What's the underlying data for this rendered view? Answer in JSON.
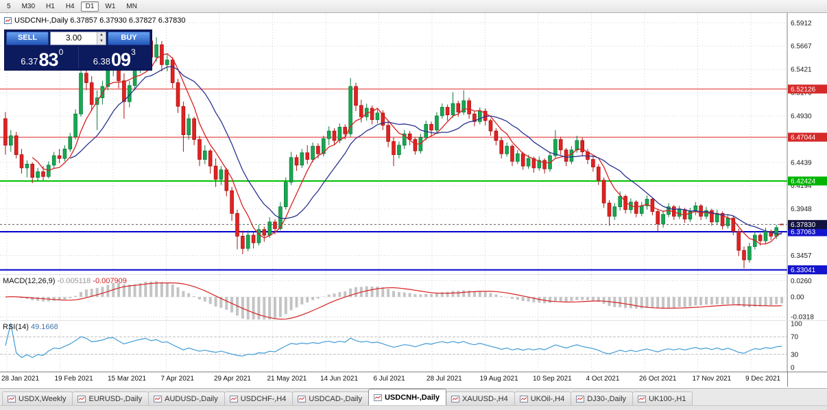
{
  "toolbar": {
    "timeframes": [
      "5",
      "M30",
      "H1",
      "H4",
      "D1",
      "W1",
      "MN"
    ],
    "active": "D1"
  },
  "chart_header": {
    "symbol_line": "USDCNH-,Daily  6.37857 6.37930 6.37827 6.37830"
  },
  "one_click": {
    "sell_label": "SELL",
    "buy_label": "BUY",
    "lot": "3.00",
    "sell_price": {
      "prefix": "6.37",
      "big": "83",
      "sup": "0"
    },
    "buy_price": {
      "prefix": "6.38",
      "big": "09",
      "sup": "3"
    }
  },
  "axis": {
    "price_labels": [
      6.5912,
      6.5667,
      6.5421,
      6.5176,
      6.493,
      6.4685,
      6.4439,
      6.4194,
      6.3948,
      6.3703,
      6.3457
    ],
    "badges": [
      {
        "label": "6.52126",
        "price": 6.52126,
        "bg": "#d42a2a"
      },
      {
        "label": "6.47044",
        "price": 6.47044,
        "bg": "#d42a2a"
      },
      {
        "label": "6.42424",
        "price": 6.42424,
        "bg": "#00b400"
      },
      {
        "label": "6.37063",
        "price": 6.37063,
        "bg": "#1414cc"
      },
      {
        "label": "6.33041",
        "price": 6.33041,
        "bg": "#1414cc"
      },
      {
        "label": "6.37830",
        "price": 6.3783,
        "bg": "#13133f"
      }
    ]
  },
  "indicators": {
    "macd": {
      "name": "MACD(12,26,9)",
      "value_main": "-0.005118",
      "value_signal": "-0.007909",
      "axis_labels": [
        {
          "text": "0.0260",
          "value": 0.026
        },
        {
          "text": "0.00",
          "value": 0
        },
        {
          "text": "-0.0318",
          "value": -0.0318
        }
      ]
    },
    "rsi": {
      "name": "RSI(14)",
      "value": "49.1668",
      "axis_labels": [
        {
          "text": "100",
          "value": 100
        },
        {
          "text": "70",
          "value": 70
        },
        {
          "text": "30",
          "value": 30
        },
        {
          "text": "0",
          "value": 0
        }
      ],
      "levels": [
        70,
        30
      ]
    }
  },
  "tabs": {
    "items": [
      "USDX,Weekly",
      "EURUSD-,Daily",
      "AUDUSD-,Daily",
      "USDCHF-,H4",
      "USDCAD-,Daily",
      "USDCNH-,Daily",
      "XAUUSD-,H4",
      "UKOil-,H4",
      "DJ30-,Daily",
      "UK100-,H1"
    ],
    "active": "USDCNH-,Daily"
  },
  "chart_data": {
    "type": "candlestick",
    "symbol": "USDCNH-",
    "timeframe": "Daily",
    "current_bar": {
      "open": 6.37857,
      "high": 6.3793,
      "low": 6.37827,
      "close": 6.3783
    },
    "price_range": [
      6.3265,
      6.6001
    ],
    "grid": "dotted",
    "date_ticks": [
      "28 Jan 2021",
      "19 Feb 2021",
      "15 Mar 2021",
      "7 Apr 2021",
      "29 Apr 2021",
      "21 May 2021",
      "14 Jun 2021",
      "6 Jul 2021",
      "28 Jul 2021",
      "19 Aug 2021",
      "10 Sep 2021",
      "4 Oct 2021",
      "26 Oct 2021",
      "17 Nov 2021",
      "9 Dec 2021"
    ],
    "hlines": [
      {
        "price": 6.52126,
        "color": "#e02020",
        "width": 1
      },
      {
        "price": 6.47044,
        "color": "#e02020",
        "width": 1
      },
      {
        "price": 6.42424,
        "color": "#00c000",
        "width": 2
      },
      {
        "price": 6.37063,
        "color": "#0000cd",
        "width": 2
      },
      {
        "price": 6.33041,
        "color": "#0000cd",
        "width": 2
      }
    ],
    "bid_line": {
      "price": 6.3783,
      "color": "#5a5a5a"
    },
    "moving_averages": [
      {
        "period": 6,
        "color": "#d62020"
      },
      {
        "period": 13,
        "color": "#28318f"
      }
    ],
    "up_color": "#18a852",
    "down_color": "#e22222",
    "candles": [
      [
        6.49,
        6.497,
        6.452,
        6.462
      ],
      [
        6.462,
        6.478,
        6.455,
        6.472
      ],
      [
        6.472,
        6.476,
        6.448,
        6.452
      ],
      [
        6.452,
        6.458,
        6.432,
        6.438
      ],
      [
        6.438,
        6.446,
        6.428,
        6.442
      ],
      [
        6.442,
        6.444,
        6.422,
        6.428
      ],
      [
        6.428,
        6.438,
        6.424,
        6.434
      ],
      [
        6.434,
        6.44,
        6.425,
        6.429
      ],
      [
        6.429,
        6.445,
        6.427,
        6.441
      ],
      [
        6.441,
        6.455,
        6.438,
        6.451
      ],
      [
        6.451,
        6.458,
        6.443,
        6.448
      ],
      [
        6.448,
        6.462,
        6.445,
        6.458
      ],
      [
        6.458,
        6.475,
        6.455,
        6.471
      ],
      [
        6.471,
        6.5,
        6.468,
        6.495
      ],
      [
        6.495,
        6.548,
        6.492,
        6.538
      ],
      [
        6.538,
        6.575,
        6.52,
        6.528
      ],
      [
        6.528,
        6.535,
        6.498,
        6.505
      ],
      [
        6.505,
        6.52,
        6.478,
        6.512
      ],
      [
        6.512,
        6.53,
        6.505,
        6.524
      ],
      [
        6.524,
        6.572,
        6.52,
        6.548
      ],
      [
        6.548,
        6.562,
        6.535,
        6.552
      ],
      [
        6.552,
        6.556,
        6.522,
        6.53
      ],
      [
        6.53,
        6.538,
        6.49,
        6.508
      ],
      [
        6.508,
        6.53,
        6.502,
        6.525
      ],
      [
        6.525,
        6.548,
        6.52,
        6.542
      ],
      [
        6.542,
        6.565,
        6.538,
        6.558
      ],
      [
        6.558,
        6.583,
        6.552,
        6.572
      ],
      [
        6.572,
        6.578,
        6.548,
        6.555
      ],
      [
        6.555,
        6.576,
        6.55,
        6.568
      ],
      [
        6.568,
        6.572,
        6.54,
        6.547
      ],
      [
        6.547,
        6.558,
        6.54,
        6.552
      ],
      [
        6.552,
        6.555,
        6.522,
        6.528
      ],
      [
        6.528,
        6.532,
        6.496,
        6.503
      ],
      [
        6.503,
        6.508,
        6.455,
        6.473
      ],
      [
        6.473,
        6.495,
        6.468,
        6.49
      ],
      [
        6.49,
        6.492,
        6.462,
        6.468
      ],
      [
        6.468,
        6.472,
        6.44,
        6.447
      ],
      [
        6.447,
        6.462,
        6.442,
        6.456
      ],
      [
        6.456,
        6.458,
        6.432,
        6.44
      ],
      [
        6.44,
        6.448,
        6.418,
        6.426
      ],
      [
        6.426,
        6.44,
        6.42,
        6.436
      ],
      [
        6.436,
        6.438,
        6.408,
        6.414
      ],
      [
        6.414,
        6.418,
        6.382,
        6.39
      ],
      [
        6.39,
        6.394,
        6.352,
        6.366
      ],
      [
        6.366,
        6.372,
        6.347,
        6.353
      ],
      [
        6.353,
        6.372,
        6.35,
        6.367
      ],
      [
        6.367,
        6.37,
        6.353,
        6.359
      ],
      [
        6.359,
        6.378,
        6.356,
        6.373
      ],
      [
        6.373,
        6.376,
        6.36,
        6.367
      ],
      [
        6.367,
        6.386,
        6.364,
        6.381
      ],
      [
        6.381,
        6.384,
        6.368,
        6.374
      ],
      [
        6.374,
        6.402,
        6.372,
        6.397
      ],
      [
        6.397,
        6.428,
        6.394,
        6.423
      ],
      [
        6.423,
        6.455,
        6.42,
        6.449
      ],
      [
        6.449,
        6.452,
        6.435,
        6.441
      ],
      [
        6.441,
        6.458,
        6.438,
        6.454
      ],
      [
        6.454,
        6.462,
        6.442,
        6.447
      ],
      [
        6.447,
        6.465,
        6.444,
        6.461
      ],
      [
        6.461,
        6.464,
        6.448,
        6.453
      ],
      [
        6.453,
        6.472,
        6.45,
        6.469
      ],
      [
        6.469,
        6.482,
        6.462,
        6.477
      ],
      [
        6.477,
        6.48,
        6.462,
        6.467
      ],
      [
        6.467,
        6.485,
        6.464,
        6.481
      ],
      [
        6.481,
        6.484,
        6.468,
        6.474
      ],
      [
        6.474,
        6.533,
        6.471,
        6.524
      ],
      [
        6.524,
        6.528,
        6.498,
        6.504
      ],
      [
        6.504,
        6.51,
        6.486,
        6.492
      ],
      [
        6.492,
        6.506,
        6.488,
        6.501
      ],
      [
        6.501,
        6.504,
        6.484,
        6.489
      ],
      [
        6.489,
        6.5,
        6.485,
        6.496
      ],
      [
        6.496,
        6.499,
        6.478,
        6.483
      ],
      [
        6.483,
        6.486,
        6.46,
        6.466
      ],
      [
        6.466,
        6.47,
        6.44,
        6.452
      ],
      [
        6.452,
        6.466,
        6.448,
        6.462
      ],
      [
        6.462,
        6.478,
        6.458,
        6.474
      ],
      [
        6.474,
        6.477,
        6.462,
        6.468
      ],
      [
        6.468,
        6.47,
        6.452,
        6.456
      ],
      [
        6.456,
        6.474,
        6.453,
        6.47
      ],
      [
        6.47,
        6.488,
        6.467,
        6.484
      ],
      [
        6.484,
        6.487,
        6.472,
        6.478
      ],
      [
        6.478,
        6.497,
        6.475,
        6.493
      ],
      [
        6.493,
        6.506,
        6.49,
        6.502
      ],
      [
        6.502,
        6.505,
        6.488,
        6.494
      ],
      [
        6.494,
        6.518,
        6.491,
        6.506
      ],
      [
        6.506,
        6.509,
        6.492,
        6.497
      ],
      [
        6.497,
        6.52,
        6.494,
        6.509
      ],
      [
        6.509,
        6.512,
        6.49,
        6.495
      ],
      [
        6.495,
        6.498,
        6.482,
        6.487
      ],
      [
        6.487,
        6.502,
        6.484,
        6.498
      ],
      [
        6.498,
        6.501,
        6.483,
        6.488
      ],
      [
        6.488,
        6.49,
        6.472,
        6.477
      ],
      [
        6.477,
        6.48,
        6.462,
        6.467
      ],
      [
        6.467,
        6.47,
        6.448,
        6.453
      ],
      [
        6.453,
        6.465,
        6.45,
        6.461
      ],
      [
        6.461,
        6.463,
        6.44,
        6.445
      ],
      [
        6.445,
        6.457,
        6.442,
        6.453
      ],
      [
        6.453,
        6.455,
        6.436,
        6.44
      ],
      [
        6.44,
        6.452,
        6.437,
        6.448
      ],
      [
        6.448,
        6.45,
        6.433,
        6.438
      ],
      [
        6.438,
        6.45,
        6.435,
        6.446
      ],
      [
        6.446,
        6.448,
        6.432,
        6.437
      ],
      [
        6.437,
        6.455,
        6.434,
        6.451
      ],
      [
        6.451,
        6.478,
        6.448,
        6.468
      ],
      [
        6.468,
        6.471,
        6.452,
        6.457
      ],
      [
        6.457,
        6.459,
        6.44,
        6.445
      ],
      [
        6.445,
        6.461,
        6.442,
        6.457
      ],
      [
        6.457,
        6.472,
        6.454,
        6.467
      ],
      [
        6.467,
        6.47,
        6.45,
        6.455
      ],
      [
        6.455,
        6.458,
        6.442,
        6.447
      ],
      [
        6.447,
        6.45,
        6.434,
        6.439
      ],
      [
        6.439,
        6.442,
        6.42,
        6.425
      ],
      [
        6.425,
        6.428,
        6.396,
        6.401
      ],
      [
        6.401,
        6.404,
        6.377,
        6.387
      ],
      [
        6.387,
        6.401,
        6.383,
        6.397
      ],
      [
        6.397,
        6.413,
        6.393,
        6.408
      ],
      [
        6.408,
        6.41,
        6.39,
        6.394
      ],
      [
        6.394,
        6.406,
        6.39,
        6.402
      ],
      [
        6.402,
        6.404,
        6.386,
        6.39
      ],
      [
        6.39,
        6.402,
        6.387,
        6.398
      ],
      [
        6.398,
        6.409,
        6.394,
        6.405
      ],
      [
        6.405,
        6.407,
        6.388,
        6.392
      ],
      [
        6.392,
        6.394,
        6.371,
        6.379
      ],
      [
        6.379,
        6.393,
        6.375,
        6.389
      ],
      [
        6.389,
        6.401,
        6.386,
        6.397
      ],
      [
        6.397,
        6.399,
        6.383,
        6.387
      ],
      [
        6.387,
        6.398,
        6.384,
        6.394
      ],
      [
        6.394,
        6.396,
        6.38,
        6.384
      ],
      [
        6.384,
        6.396,
        6.381,
        6.392
      ],
      [
        6.392,
        6.402,
        6.388,
        6.398
      ],
      [
        6.398,
        6.4,
        6.383,
        6.387
      ],
      [
        6.387,
        6.397,
        6.384,
        6.393
      ],
      [
        6.393,
        6.395,
        6.377,
        6.381
      ],
      [
        6.381,
        6.394,
        6.378,
        6.39
      ],
      [
        6.39,
        6.392,
        6.373,
        6.377
      ],
      [
        6.377,
        6.389,
        6.374,
        6.385
      ],
      [
        6.385,
        6.387,
        6.367,
        6.371
      ],
      [
        6.371,
        6.374,
        6.345,
        6.351
      ],
      [
        6.351,
        6.355,
        6.332,
        6.341
      ],
      [
        6.341,
        6.359,
        6.338,
        6.355
      ],
      [
        6.355,
        6.371,
        6.352,
        6.367
      ],
      [
        6.367,
        6.369,
        6.356,
        6.361
      ],
      [
        6.361,
        6.375,
        6.358,
        6.371
      ],
      [
        6.371,
        6.373,
        6.362,
        6.366
      ],
      [
        6.366,
        6.378,
        6.363,
        6.375
      ],
      [
        6.3786,
        6.3793,
        6.3783,
        6.3783
      ]
    ]
  }
}
